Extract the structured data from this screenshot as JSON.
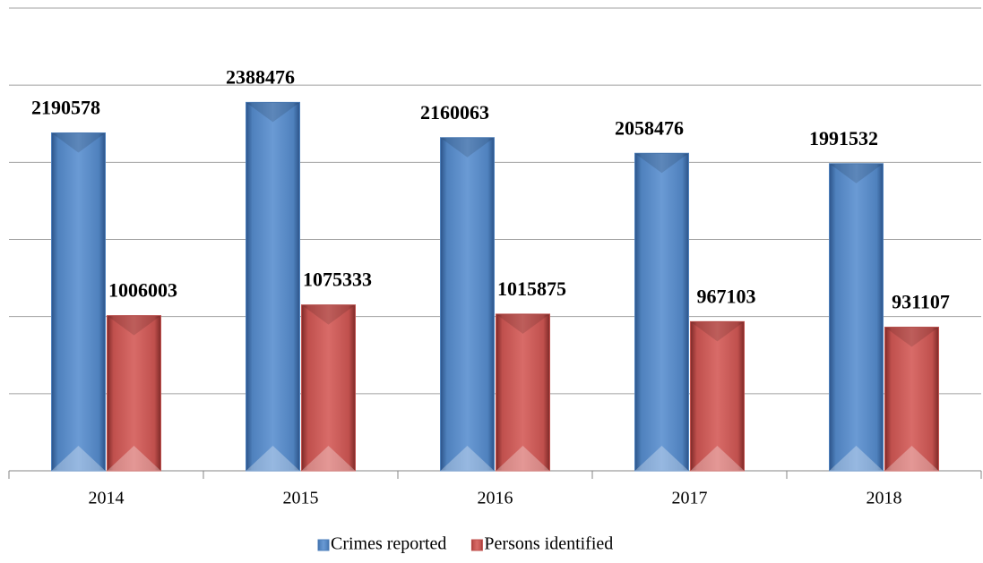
{
  "chart_data": {
    "type": "bar",
    "categories": [
      "2014",
      "2015",
      "2016",
      "2017",
      "2018"
    ],
    "series": [
      {
        "name": "Crimes reported",
        "color": "#4f81bd",
        "values": [
          2190578,
          2388476,
          2160063,
          2058476,
          1991532
        ]
      },
      {
        "name": "Persons identified",
        "color": "#c0504d",
        "values": [
          1006003,
          1075333,
          1015875,
          967103,
          931107
        ]
      }
    ],
    "ylim": [
      0,
      3000000
    ],
    "yticks": [
      0,
      500000,
      1000000,
      1500000,
      2000000,
      2500000,
      3000000
    ],
    "grid": true,
    "legend": "bottom"
  }
}
